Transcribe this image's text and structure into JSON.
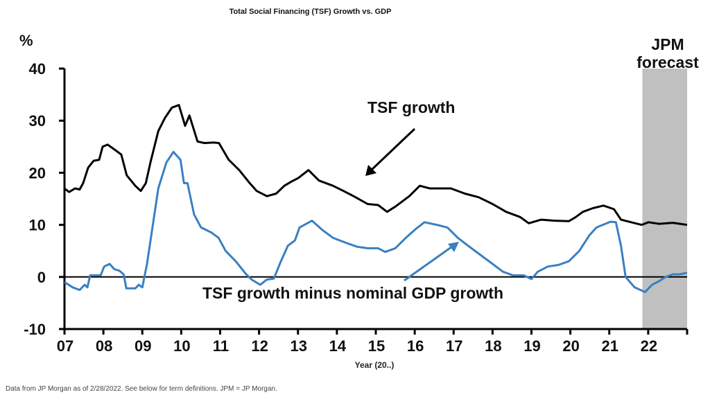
{
  "chart_data": {
    "type": "line",
    "title": "Total Social Financing (TSF) Growth vs. GDP",
    "xlabel": "Year (20..)",
    "ylabel": "%",
    "xlim": [
      2007,
      2023
    ],
    "ylim": [
      -10,
      40
    ],
    "x_ticks": [
      2007,
      2008,
      2009,
      2010,
      2011,
      2012,
      2013,
      2014,
      2015,
      2016,
      2017,
      2018,
      2019,
      2020,
      2021,
      2022
    ],
    "x_tick_labels": [
      "07",
      "08",
      "09",
      "10",
      "11",
      "12",
      "13",
      "14",
      "15",
      "16",
      "17",
      "18",
      "19",
      "20",
      "21",
      "22"
    ],
    "y_ticks": [
      -10,
      0,
      10,
      20,
      30,
      40
    ],
    "y_tick_labels": [
      "-10",
      "0",
      "10",
      "20",
      "30",
      "40"
    ],
    "forecast_region": {
      "label": "JPM forecast",
      "from": 2021.85,
      "to": 2023,
      "color": "#c0c0c0"
    },
    "annotations": [
      {
        "text": "TSF growth",
        "series": "TSF growth"
      },
      {
        "text": "TSF growth minus nominal GDP growth",
        "series": "TSF growth minus nominal GDP growth"
      }
    ],
    "series": [
      {
        "name": "TSF growth",
        "color": "#000000",
        "x": [
          2007,
          2007.12,
          2007.27,
          2007.39,
          2007.48,
          2007.61,
          2007.75,
          2007.89,
          2007.98,
          2008.11,
          2008.28,
          2008.46,
          2008.6,
          2008.82,
          2008.96,
          2009.09,
          2009.21,
          2009.41,
          2009.58,
          2009.76,
          2009.94,
          2010.1,
          2010.21,
          2010.42,
          2010.6,
          2010.83,
          2010.97,
          2011.22,
          2011.49,
          2011.76,
          2011.94,
          2012.2,
          2012.44,
          2012.65,
          2012.83,
          2013.01,
          2013.27,
          2013.54,
          2013.9,
          2014.17,
          2014.43,
          2014.79,
          2015.06,
          2015.29,
          2015.5,
          2015.86,
          2016.13,
          2016.39,
          2016.93,
          2017.29,
          2017.64,
          2018.0,
          2018.35,
          2018.71,
          2018.93,
          2019.25,
          2019.6,
          2019.96,
          2020.14,
          2020.32,
          2020.58,
          2020.85,
          2021.12,
          2021.3,
          2021.56,
          2021.83,
          2022.01,
          2022.28,
          2022.63,
          2023.0
        ],
        "y": [
          17,
          16.3,
          17,
          16.8,
          18,
          21,
          22.3,
          22.5,
          25,
          25.4,
          24.5,
          23.5,
          19.5,
          17.5,
          16.5,
          18,
          22,
          28,
          30.5,
          32.5,
          33,
          29,
          31,
          26,
          25.7,
          25.8,
          25.7,
          22.5,
          20.5,
          18,
          16.5,
          15.5,
          16,
          17.5,
          18.3,
          19,
          20.5,
          18.5,
          17.5,
          16.5,
          15.5,
          14,
          13.8,
          12.5,
          13.5,
          15.5,
          17.5,
          17,
          17,
          16,
          15.3,
          14,
          12.5,
          11.5,
          10.3,
          11,
          10.8,
          10.7,
          11.5,
          12.5,
          13.2,
          13.7,
          13,
          11,
          10.5,
          10,
          10.5,
          10.2,
          10.4,
          10
        ]
      },
      {
        "name": "TSF growth minus nominal GDP growth",
        "color": "#3a7fc1",
        "x": [
          2007,
          2007.21,
          2007.39,
          2007.52,
          2007.59,
          2007.66,
          2007.93,
          2008.02,
          2008.16,
          2008.28,
          2008.41,
          2008.52,
          2008.59,
          2008.82,
          2008.91,
          2009.0,
          2009.12,
          2009.23,
          2009.41,
          2009.62,
          2009.8,
          2009.98,
          2010.07,
          2010.16,
          2010.33,
          2010.51,
          2010.78,
          2010.96,
          2011.14,
          2011.4,
          2011.67,
          2011.81,
          2012.03,
          2012.2,
          2012.38,
          2012.56,
          2012.74,
          2012.92,
          2013.04,
          2013.36,
          2013.63,
          2013.9,
          2014.25,
          2014.52,
          2014.79,
          2015.06,
          2015.24,
          2015.5,
          2015.77,
          2016.04,
          2016.25,
          2016.57,
          2016.84,
          2017.11,
          2017.37,
          2017.64,
          2018.0,
          2018.27,
          2018.53,
          2018.8,
          2019.0,
          2019.16,
          2019.42,
          2019.69,
          2019.96,
          2020.23,
          2020.49,
          2020.67,
          2021.03,
          2021.17,
          2021.3,
          2021.42,
          2021.65,
          2021.92,
          2022.1,
          2022.28,
          2022.45,
          2022.63,
          2022.81,
          2023.0
        ],
        "y": [
          -1,
          -2,
          -2.5,
          -1.5,
          -2,
          0.3,
          0.3,
          2,
          2.5,
          1.5,
          1.2,
          0.5,
          -2.2,
          -2.2,
          -1.5,
          -2,
          2.5,
          8,
          17,
          22,
          24,
          22.5,
          18,
          18,
          12,
          9.5,
          8.5,
          7.5,
          5,
          3,
          0.5,
          -0.5,
          -1.5,
          -0.5,
          -0.3,
          3,
          6,
          7,
          9.5,
          10.8,
          9,
          7.5,
          6.5,
          5.8,
          5.5,
          5.5,
          4.8,
          5.5,
          7.5,
          9.3,
          10.5,
          10,
          9.5,
          7.5,
          6,
          4.5,
          2.5,
          1,
          0.3,
          0.3,
          -0.4,
          1,
          2,
          2.3,
          3,
          5,
          8,
          9.5,
          10.6,
          10.5,
          6,
          0,
          -2,
          -2.9,
          -1.5,
          -0.8,
          0,
          0.5,
          0.5,
          0.8
        ]
      }
    ]
  },
  "footer": "Data from JP Morgan as of 2/28/2022. See below for term definitions. JPM = JP Morgan.",
  "forecast_label_line1": "JPM",
  "forecast_label_line2": "forecast"
}
